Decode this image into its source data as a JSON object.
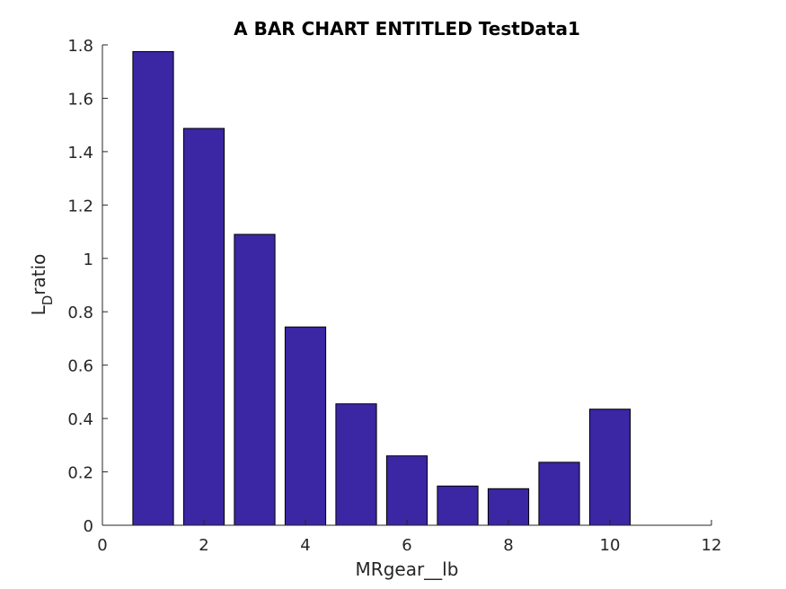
{
  "chart_data": {
    "type": "bar",
    "title": "A BAR CHART ENTITLED TestData1",
    "xlabel": "MRgear__lb",
    "ylabel": {
      "main": "L",
      "subscript": "D",
      "suffix": "ratio"
    },
    "x": [
      1,
      2,
      3,
      4,
      5,
      6,
      7,
      8,
      9,
      10
    ],
    "values": [
      1.775,
      1.487,
      1.09,
      0.743,
      0.455,
      0.26,
      0.147,
      0.137,
      0.236,
      0.435
    ],
    "xlim": [
      0,
      12
    ],
    "ylim": [
      0,
      1.8
    ],
    "xticks": [
      "0",
      "2",
      "4",
      "6",
      "8",
      "10",
      "12"
    ],
    "yticks": [
      "0",
      "0.2",
      "0.4",
      "0.6",
      "0.8",
      "1",
      "1.2",
      "1.4",
      "1.6",
      "1.8"
    ],
    "bar_color": "#3b26a3",
    "grid": false
  }
}
